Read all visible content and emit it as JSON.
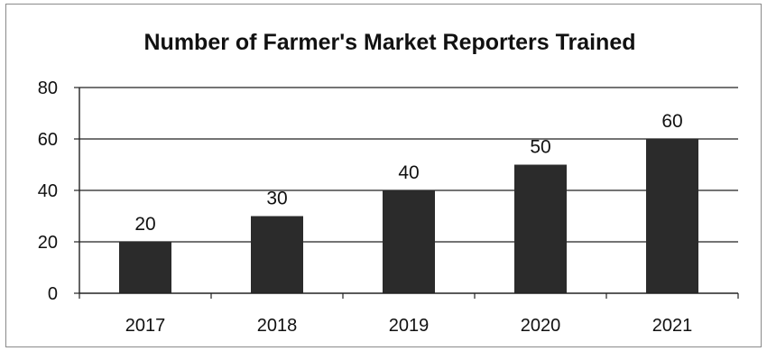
{
  "chart_data": {
    "type": "bar",
    "title": "Number of Farmer's Market Reporters Trained",
    "xlabel": "",
    "ylabel": "",
    "categories": [
      "2017",
      "2018",
      "2019",
      "2020",
      "2021"
    ],
    "values": [
      20,
      30,
      40,
      50,
      60
    ],
    "data_labels": [
      "20",
      "30",
      "40",
      "50",
      "60"
    ],
    "y_ticks": [
      "0",
      "20",
      "40",
      "60",
      "80"
    ],
    "ylim": [
      0,
      80
    ],
    "grid": true,
    "legend": "none",
    "bar_color": "#2b2b2b",
    "grid_color": "#222222"
  }
}
